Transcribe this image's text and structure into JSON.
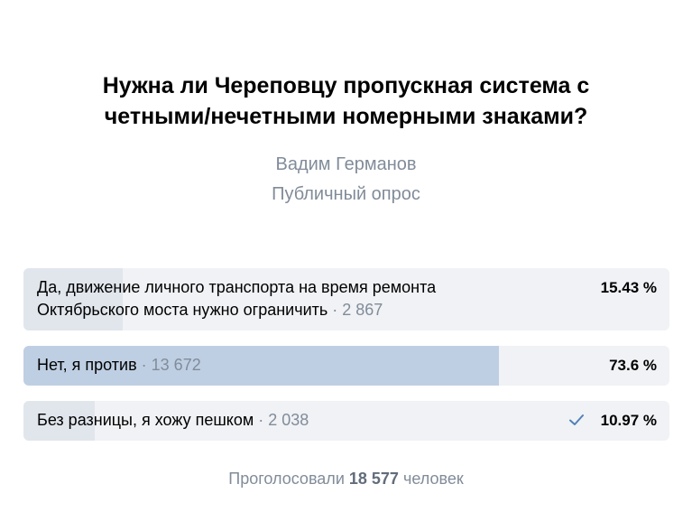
{
  "poll": {
    "question": "Нужна ли Череповцу пропускная система с четными/нечетными номерными знаками?",
    "author": "Вадим Германов",
    "type": "Публичный опрос",
    "options": [
      {
        "line1": "Да, движение личного транспорта на время ремонта",
        "line2": "Октябрьского моста нужно ограничить",
        "votes": "2 867",
        "percent": "15.43 %",
        "share": 0.1543,
        "selected": false
      },
      {
        "label": "Нет, я против",
        "votes": "13 672",
        "percent": "73.6 %",
        "share": 0.736,
        "selected": false
      },
      {
        "label": "Без разницы, я хожу пешком",
        "votes": "2 038",
        "percent": "10.97 %",
        "share": 0.1097,
        "selected": true
      }
    ],
    "total": {
      "prefix": "Проголосовали",
      "count": "18 577",
      "suffix": "человек"
    },
    "separator": " · ",
    "icons": {
      "selected": "check-icon"
    },
    "colors": {
      "text": "#000000",
      "secondary": "#818c99",
      "option_bg": "#f0f2f5",
      "option_fill": "#e1e6ed",
      "winner_fill": "#bfcfe3",
      "accent": "#5181b8"
    }
  }
}
